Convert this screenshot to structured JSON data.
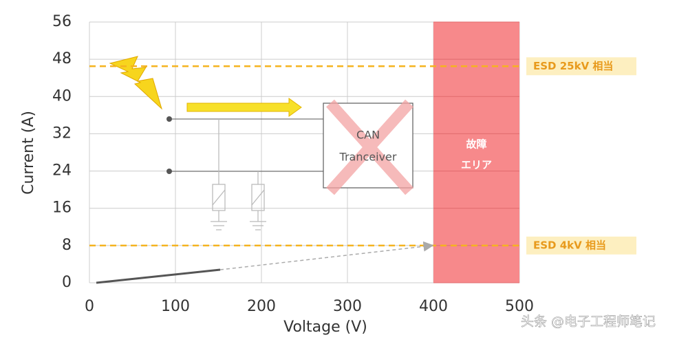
{
  "chart_data": {
    "type": "line",
    "x_label": "Voltage (V)",
    "y_label": "Current (A)",
    "xlim": [
      0,
      500
    ],
    "xticks": [
      0,
      100,
      200,
      300,
      400,
      500
    ],
    "ylim": [
      0,
      56
    ],
    "yticks": [
      0,
      8,
      16,
      24,
      32,
      40,
      48,
      56
    ],
    "grid": true,
    "series": [
      {
        "color": "#555555",
        "style": "solid",
        "x": [
          8,
          152
        ],
        "values": [
          0,
          2.8
        ]
      },
      {
        "color": "#aaaaaa",
        "style": "dashed",
        "x": [
          152,
          398
        ],
        "values": [
          2.8,
          8
        ]
      }
    ],
    "hlines": [
      {
        "value": 46.5,
        "label": "ESD 25kV 相当",
        "color": "#f5b31f"
      },
      {
        "value": 8,
        "label": "ESD 4kV 相当",
        "color": "#f5b31f"
      }
    ],
    "regions": [
      {
        "start": 400,
        "end": 500,
        "label": [
          "故障",
          "エリア"
        ],
        "color": "#f7898b"
      }
    ],
    "box_text": [
      "CAN",
      "Tranceiver"
    ]
  },
  "watermark": "头条 @电子工程师笔记"
}
